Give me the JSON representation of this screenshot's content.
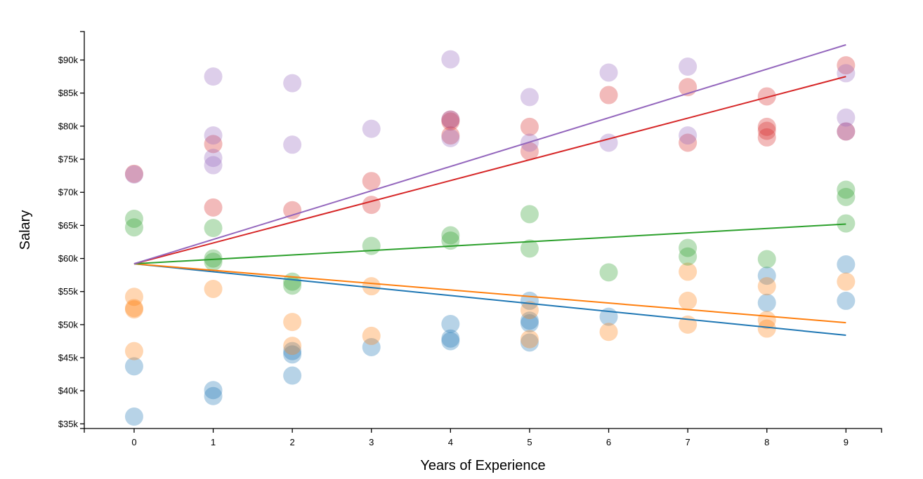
{
  "chart_data": {
    "type": "scatter",
    "title": "",
    "xlabel": "Years of Experience",
    "ylabel": "Salary",
    "xlim": [
      -0.63,
      9.45
    ],
    "ylim": [
      34300,
      94300
    ],
    "x_ticks": [
      0,
      1,
      2,
      3,
      4,
      5,
      6,
      7,
      8,
      9
    ],
    "x_tick_labels": [
      "0",
      "1",
      "2",
      "3",
      "4",
      "5",
      "6",
      "7",
      "8",
      "9"
    ],
    "y_ticks": [
      35000,
      40000,
      45000,
      50000,
      55000,
      60000,
      65000,
      70000,
      75000,
      80000,
      85000,
      90000
    ],
    "y_tick_labels": [
      "$35k",
      "$40k",
      "$45k",
      "$50k",
      "$55k",
      "$60k",
      "$65k",
      "$70k",
      "$75k",
      "$80k",
      "$85k",
      "$90k"
    ],
    "grid": false,
    "legend": "none",
    "series": [
      {
        "color": "#1f77b4",
        "points": [
          [
            0,
            43700
          ],
          [
            0,
            36100
          ],
          [
            1,
            40100
          ],
          [
            1,
            39200
          ],
          [
            2,
            46000
          ],
          [
            2,
            45500
          ],
          [
            2,
            42300
          ],
          [
            3,
            46600
          ],
          [
            4,
            50100
          ],
          [
            4,
            47900
          ],
          [
            4,
            47500
          ],
          [
            5,
            53600
          ],
          [
            5,
            50600
          ],
          [
            5,
            50200
          ],
          [
            5,
            47300
          ],
          [
            6,
            51200
          ],
          [
            8,
            57400
          ],
          [
            8,
            53300
          ],
          [
            9,
            59100
          ],
          [
            9,
            53600
          ]
        ],
        "trend": [
          [
            0,
            59200
          ],
          [
            9,
            48400
          ]
        ]
      },
      {
        "color": "#ff7f0e",
        "points": [
          [
            0,
            54200
          ],
          [
            0,
            52500
          ],
          [
            0,
            52300
          ],
          [
            0,
            46000
          ],
          [
            1,
            55400
          ],
          [
            2,
            50400
          ],
          [
            2,
            46800
          ],
          [
            3,
            55800
          ],
          [
            3,
            48300
          ],
          [
            5,
            52200
          ],
          [
            5,
            47800
          ],
          [
            6,
            48900
          ],
          [
            7,
            58000
          ],
          [
            7,
            53600
          ],
          [
            7,
            50000
          ],
          [
            8,
            55800
          ],
          [
            8,
            50700
          ],
          [
            8,
            49400
          ],
          [
            9,
            56500
          ]
        ],
        "trend": [
          [
            0,
            59200
          ],
          [
            9,
            50300
          ]
        ]
      },
      {
        "color": "#2ca02c",
        "points": [
          [
            0,
            66000
          ],
          [
            0,
            64700
          ],
          [
            1,
            64600
          ],
          [
            1,
            60000
          ],
          [
            1,
            59500
          ],
          [
            2,
            56500
          ],
          [
            2,
            55900
          ],
          [
            3,
            61900
          ],
          [
            4,
            63500
          ],
          [
            4,
            62700
          ],
          [
            5,
            66700
          ],
          [
            5,
            61500
          ],
          [
            6,
            57900
          ],
          [
            7,
            61600
          ],
          [
            7,
            60300
          ],
          [
            8,
            59900
          ],
          [
            9,
            70400
          ],
          [
            9,
            69300
          ],
          [
            9,
            65300
          ]
        ],
        "trend": [
          [
            0,
            59200
          ],
          [
            9,
            65200
          ]
        ]
      },
      {
        "color": "#d62728",
        "points": [
          [
            0,
            72800
          ],
          [
            1,
            77300
          ],
          [
            1,
            67700
          ],
          [
            2,
            67300
          ],
          [
            3,
            71700
          ],
          [
            3,
            68100
          ],
          [
            4,
            81000
          ],
          [
            4,
            80700
          ],
          [
            4,
            78600
          ],
          [
            5,
            79900
          ],
          [
            5,
            76200
          ],
          [
            6,
            84700
          ],
          [
            7,
            85900
          ],
          [
            7,
            77500
          ],
          [
            8,
            84500
          ],
          [
            8,
            79900
          ],
          [
            8,
            79300
          ],
          [
            8,
            78300
          ],
          [
            9,
            89200
          ],
          [
            9,
            79200
          ]
        ],
        "trend": [
          [
            0,
            59200
          ],
          [
            9,
            87500
          ]
        ]
      },
      {
        "color": "#9467bd",
        "points": [
          [
            0,
            72700
          ],
          [
            1,
            87500
          ],
          [
            1,
            78600
          ],
          [
            1,
            75200
          ],
          [
            1,
            74100
          ],
          [
            2,
            86500
          ],
          [
            2,
            77200
          ],
          [
            3,
            79600
          ],
          [
            4,
            90100
          ],
          [
            4,
            81000
          ],
          [
            4,
            78200
          ],
          [
            5,
            84400
          ],
          [
            5,
            77500
          ],
          [
            6,
            88100
          ],
          [
            6,
            77500
          ],
          [
            7,
            89000
          ],
          [
            7,
            78600
          ],
          [
            9,
            88000
          ],
          [
            9,
            81300
          ],
          [
            9,
            79200
          ]
        ],
        "trend": [
          [
            0,
            59200
          ],
          [
            9,
            92300
          ]
        ]
      }
    ]
  }
}
